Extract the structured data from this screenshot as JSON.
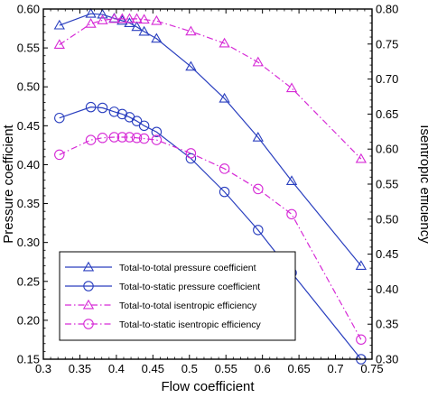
{
  "chart_data": {
    "type": "line",
    "xlabel": "Flow coefficient",
    "ylabel": "Pressure coefficient",
    "y2label": "Isentropic efficiency",
    "xlim": [
      0.3,
      0.75
    ],
    "ylim": [
      0.15,
      0.6
    ],
    "y2lim": [
      0.3,
      0.8
    ],
    "xticks": [
      "0.3",
      "0.35",
      "0.4",
      "0.45",
      "0.5",
      "0.55",
      "0.6",
      "0.65",
      "0.7",
      "0.75"
    ],
    "yticks": [
      "0.15",
      "0.20",
      "0.25",
      "0.30",
      "0.35",
      "0.40",
      "0.45",
      "0.50",
      "0.55",
      "0.60"
    ],
    "y2ticks": [
      "0.30",
      "0.35",
      "0.40",
      "0.45",
      "0.50",
      "0.55",
      "0.60",
      "0.65",
      "0.70",
      "0.75",
      "0.80"
    ],
    "legend_position": "bottom-left",
    "series": [
      {
        "name": "Total-to-total pressure coefficient",
        "axis": "left",
        "color": "#2a3fbf",
        "line_style": "solid",
        "marker": "triangle",
        "x": [
          0.322,
          0.365,
          0.381,
          0.397,
          0.408,
          0.418,
          0.428,
          0.438,
          0.455,
          0.502,
          0.548,
          0.594,
          0.64,
          0.735
        ],
        "y": [
          0.579,
          0.594,
          0.593,
          0.588,
          0.585,
          0.582,
          0.577,
          0.571,
          0.562,
          0.526,
          0.485,
          0.435,
          0.379,
          0.27
        ]
      },
      {
        "name": "Total-to-static pressure coefficient",
        "axis": "left",
        "color": "#2a3fbf",
        "line_style": "solid",
        "marker": "circle",
        "x": [
          0.322,
          0.365,
          0.381,
          0.397,
          0.408,
          0.418,
          0.428,
          0.438,
          0.455,
          0.502,
          0.548,
          0.594,
          0.64,
          0.735
        ],
        "y": [
          0.46,
          0.474,
          0.473,
          0.468,
          0.465,
          0.461,
          0.456,
          0.45,
          0.442,
          0.408,
          0.365,
          0.316,
          0.261,
          0.15
        ]
      },
      {
        "name": "Total-to-total isentropic efficiency",
        "axis": "right",
        "color": "#d62ad6",
        "line_style": "dashdot",
        "marker": "triangle",
        "x": [
          0.322,
          0.365,
          0.381,
          0.397,
          0.408,
          0.418,
          0.428,
          0.438,
          0.455,
          0.502,
          0.548,
          0.594,
          0.64,
          0.735
        ],
        "y": [
          0.749,
          0.779,
          0.784,
          0.786,
          0.786,
          0.786,
          0.786,
          0.785,
          0.783,
          0.768,
          0.751,
          0.724,
          0.687,
          0.586
        ]
      },
      {
        "name": "Total-to-static isentropic efficiency",
        "axis": "right",
        "color": "#d62ad6",
        "line_style": "dashdot",
        "marker": "circle",
        "x": [
          0.322,
          0.365,
          0.381,
          0.397,
          0.408,
          0.418,
          0.428,
          0.438,
          0.455,
          0.502,
          0.548,
          0.594,
          0.64,
          0.735
        ],
        "y": [
          0.592,
          0.613,
          0.616,
          0.617,
          0.617,
          0.617,
          0.616,
          0.615,
          0.613,
          0.594,
          0.572,
          0.543,
          0.507,
          0.328
        ]
      }
    ]
  }
}
